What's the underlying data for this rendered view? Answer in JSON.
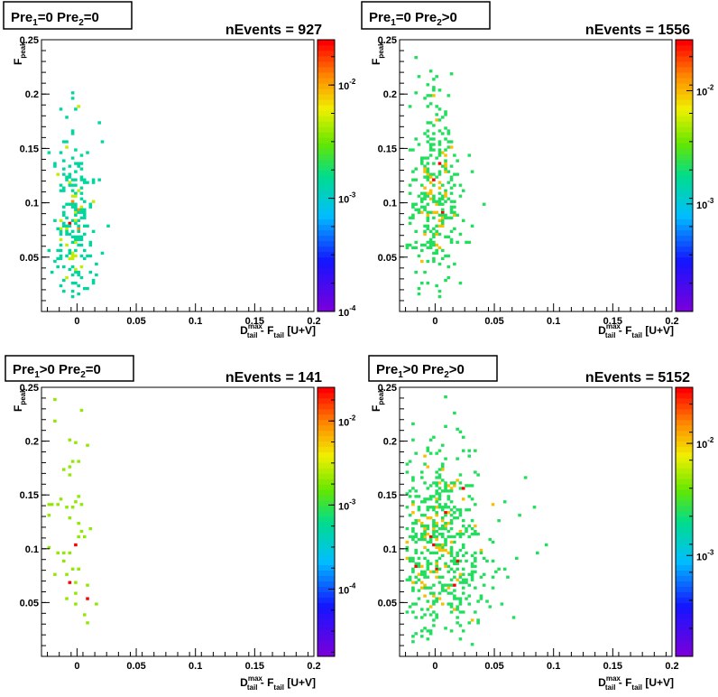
{
  "chart_data": [
    {
      "type": "heatmap",
      "title_main": "Pre",
      "title_sub1": "1",
      "title_mid": "=0  Pre",
      "title_sub2": "2",
      "title_end": "=0",
      "n_events": "nEvents = 927",
      "xlim": [
        -0.03,
        0.2
      ],
      "ylim": [
        0.0,
        0.25
      ],
      "xticks": [
        "0",
        "0.05",
        "0.1",
        "0.15",
        "0.2"
      ],
      "xtick_values": [
        0,
        0.05,
        0.1,
        0.15,
        0.2
      ],
      "yticks": [
        "0.05",
        "0.1",
        "0.15",
        "0.2",
        "0.25"
      ],
      "ytick_values": [
        0.05,
        0.1,
        0.15,
        0.2,
        0.25
      ],
      "zlog_range": [
        -4.0,
        -1.6
      ],
      "zticks": [
        {
          "base": "10",
          "exp": "-4",
          "value": -4
        },
        {
          "base": "10",
          "exp": "-3",
          "value": -3
        },
        {
          "base": "10",
          "exp": "-2",
          "value": -2
        }
      ],
      "cluster": {
        "cx": -0.002,
        "cy": 0.09,
        "sx": 0.007,
        "sy": 0.045,
        "count": 230,
        "seed": 11,
        "xmin": -0.025,
        "xmax": 0.03,
        "ymin": 0.012,
        "ymax": 0.23
      }
    },
    {
      "type": "heatmap",
      "title_main": "Pre",
      "title_sub1": "1",
      "title_mid": "=0  Pre",
      "title_sub2": "2",
      "title_end": ">0",
      "n_events": "nEvents = 1556",
      "xlim": [
        -0.03,
        0.2
      ],
      "ylim": [
        0.0,
        0.25
      ],
      "xticks": [
        "0",
        "0.05",
        "0.1",
        "0.15",
        "0.2"
      ],
      "xtick_values": [
        0,
        0.05,
        0.1,
        0.15,
        0.2
      ],
      "yticks": [
        "0.05",
        "0.1",
        "0.15",
        "0.2",
        "0.25"
      ],
      "ytick_values": [
        0.05,
        0.1,
        0.15,
        0.2,
        0.25
      ],
      "zlog_range": [
        -4.0,
        -1.6
      ],
      "zticks": [
        {
          "base": "10",
          "exp": "-3",
          "value": -3.05
        },
        {
          "base": "10",
          "exp": "-2",
          "value": -2.05
        }
      ],
      "cluster": {
        "cx": 0.0,
        "cy": 0.105,
        "sx": 0.009,
        "sy": 0.045,
        "count": 330,
        "seed": 23,
        "xmin": -0.025,
        "xmax": 0.06,
        "ymin": 0.012,
        "ymax": 0.25
      }
    },
    {
      "type": "heatmap",
      "title_main": "Pre",
      "title_sub1": "1",
      "title_mid": ">0  Pre",
      "title_sub2": "2",
      "title_end": "=0",
      "n_events": "nEvents = 141",
      "xlim": [
        -0.03,
        0.2
      ],
      "ylim": [
        0.0,
        0.25
      ],
      "xticks": [
        "0",
        "0.05",
        "0.1",
        "0.15",
        "0.2"
      ],
      "xtick_values": [
        0,
        0.05,
        0.1,
        0.15,
        0.2
      ],
      "yticks": [
        "0.05",
        "0.1",
        "0.15",
        "0.2",
        "0.25"
      ],
      "ytick_values": [
        0.05,
        0.1,
        0.15,
        0.2,
        0.25
      ],
      "zlog_range": [
        -4.8,
        -1.6
      ],
      "zticks": [
        {
          "base": "10",
          "exp": "-4",
          "value": -4
        },
        {
          "base": "10",
          "exp": "-3",
          "value": -3
        },
        {
          "base": "10",
          "exp": "-2",
          "value": -2
        }
      ],
      "cluster": {
        "cx": -0.004,
        "cy": 0.115,
        "sx": 0.008,
        "sy": 0.05,
        "count": 55,
        "seed": 37,
        "xmin": -0.025,
        "xmax": 0.02,
        "ymin": 0.03,
        "ymax": 0.25
      }
    },
    {
      "type": "heatmap",
      "title_main": "Pre",
      "title_sub1": "1",
      "title_mid": ">0  Pre",
      "title_sub2": "2",
      "title_end": ">0",
      "n_events": "nEvents = 5152",
      "xlim": [
        -0.03,
        0.2
      ],
      "ylim": [
        0.0,
        0.25
      ],
      "xticks": [
        "0",
        "0.05",
        "0.1",
        "0.15",
        "0.2"
      ],
      "xtick_values": [
        0,
        0.05,
        0.1,
        0.15,
        0.2
      ],
      "yticks": [
        "0.05",
        "0.1",
        "0.15",
        "0.2",
        "0.25"
      ],
      "ytick_values": [
        0.05,
        0.1,
        0.15,
        0.2,
        0.25
      ],
      "zlog_range": [
        -4.0,
        -1.6
      ],
      "zticks": [
        {
          "base": "10",
          "exp": "-3",
          "value": -3.1
        },
        {
          "base": "10",
          "exp": "-2",
          "value": -2.1
        }
      ],
      "cluster": {
        "cx": 0.004,
        "cy": 0.1,
        "sx": 0.018,
        "sy": 0.048,
        "count": 620,
        "seed": 53,
        "xmin": -0.025,
        "xmax": 0.12,
        "ymin": 0.012,
        "ymax": 0.25
      }
    }
  ],
  "axes_text": {
    "xlabel_d": "D",
    "xlabel_sup": "max",
    "xlabel_sub": "tail",
    "xlabel_mid": " - F",
    "xlabel_sub2": "tail",
    "xlabel_end": " [U+V]",
    "ylabel_f": "F",
    "ylabel_sub": "peak"
  }
}
